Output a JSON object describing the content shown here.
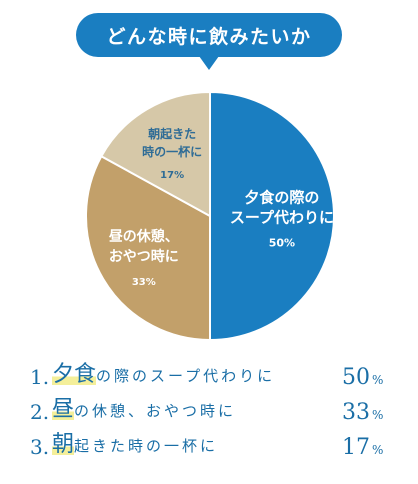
{
  "colors": {
    "accent": "#1a7ec1",
    "slice_1": "#1a7ec1",
    "slice_2": "#c2a06a",
    "slice_3": "#d6c8a8",
    "text_dark": "#1a6ea6",
    "highlight": "#f4ef9a"
  },
  "chart_data": {
    "type": "pie",
    "title": "どんな時に飲みたいか",
    "slices": [
      {
        "name_lines": [
          "夕食の際の",
          "スープ代わりに"
        ],
        "label": "夕食の際のスープ代わりに",
        "value": 50,
        "value_text": "50%"
      },
      {
        "name_lines": [
          "昼の休憩、",
          "おやつ時に"
        ],
        "label": "昼の休憩、おやつ時に",
        "value": 33,
        "value_text": "33%"
      },
      {
        "name_lines": [
          "朝起きた",
          "時の一杯に"
        ],
        "label": "朝起きた時の一杯に",
        "value": 17,
        "value_text": "17%"
      }
    ]
  },
  "ranking": [
    {
      "num": "1.",
      "big": "夕食",
      "rest": "の際のスープ代わりに",
      "pct": "50",
      "unit": "%"
    },
    {
      "num": "2.",
      "big": "昼",
      "rest": "の休憩、おやつ時に",
      "pct": "33",
      "unit": "%"
    },
    {
      "num": "3.",
      "big": "朝",
      "rest": "起きた時の一杯に",
      "pct": "17",
      "unit": "%"
    }
  ]
}
